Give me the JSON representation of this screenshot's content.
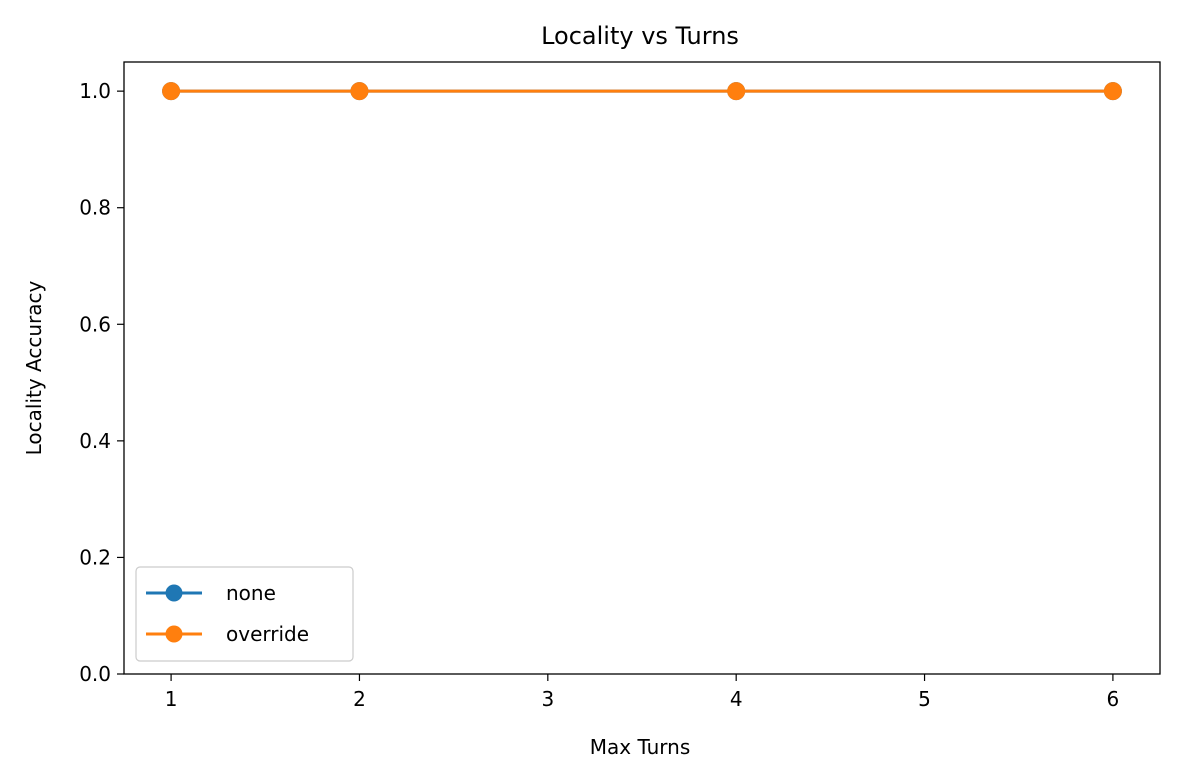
{
  "chart_data": {
    "type": "line",
    "title": "Locality vs Turns",
    "xlabel": "Max Turns",
    "ylabel": "Locality Accuracy",
    "xlim": [
      0.75,
      6.25
    ],
    "ylim": [
      0.0,
      1.05
    ],
    "xticks": [
      1,
      2,
      3,
      4,
      5,
      6
    ],
    "xtick_labels": [
      "1",
      "2",
      "3",
      "4",
      "5",
      "6"
    ],
    "yticks": [
      0.0,
      0.2,
      0.4,
      0.6,
      0.8,
      1.0
    ],
    "ytick_labels": [
      "0.0",
      "0.2",
      "0.4",
      "0.6",
      "0.8",
      "1.0"
    ],
    "grid": false,
    "legend_position": "lower-left",
    "series": [
      {
        "name": "none",
        "color": "#1f77b4",
        "marker": "circle",
        "x": [
          1,
          2,
          4,
          6
        ],
        "y": [
          1.0,
          1.0,
          1.0,
          1.0
        ]
      },
      {
        "name": "override",
        "color": "#ff7f0e",
        "marker": "circle",
        "x": [
          1,
          2,
          4,
          6
        ],
        "y": [
          1.0,
          1.0,
          1.0,
          1.0
        ]
      }
    ]
  }
}
